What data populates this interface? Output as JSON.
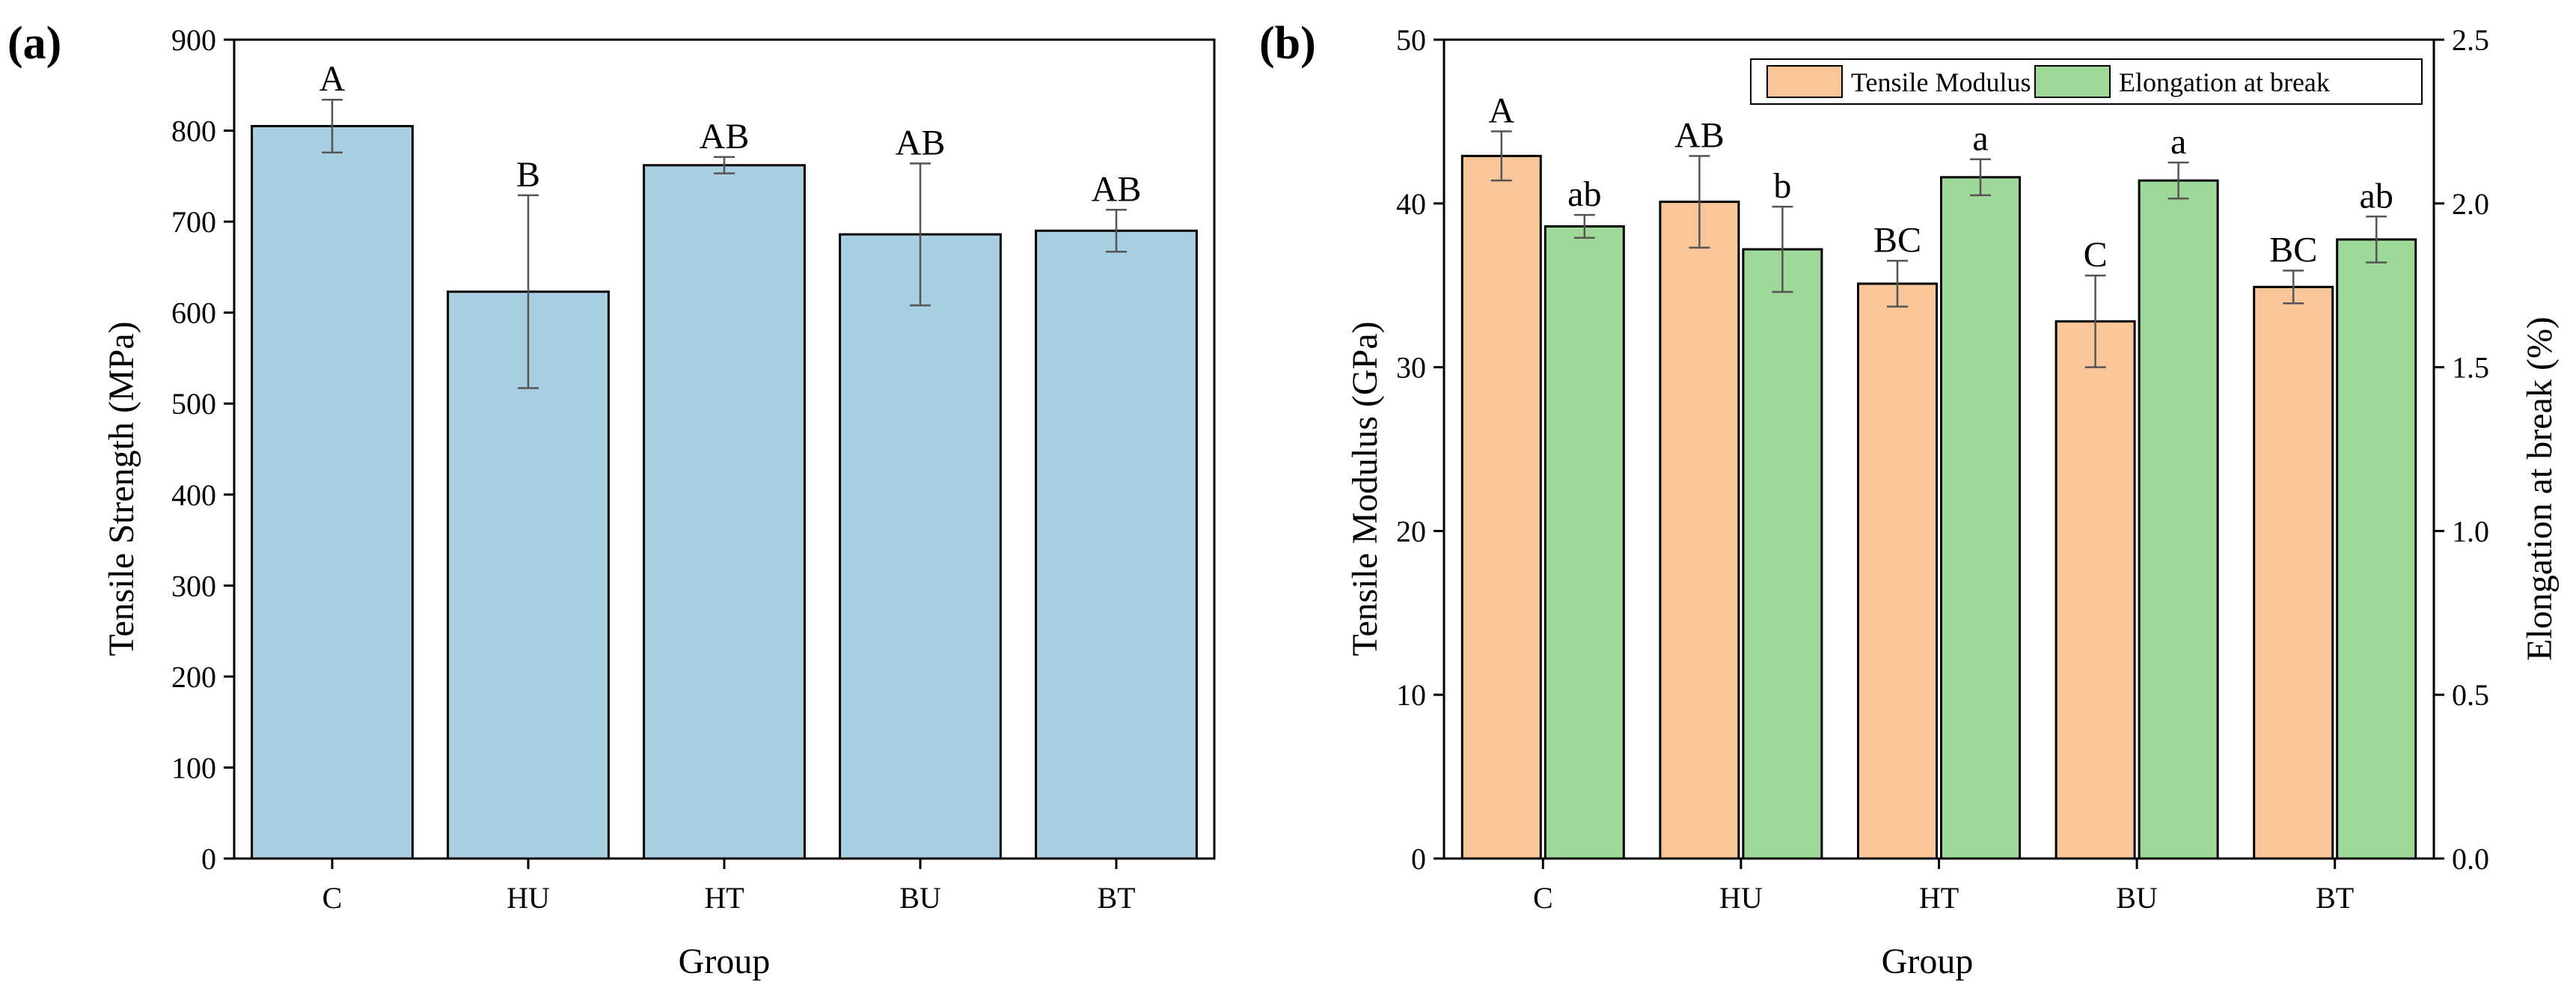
{
  "chart_data": [
    {
      "type": "bar",
      "panel_label": "(a)",
      "categories": [
        "C",
        "HU",
        "HT",
        "BU",
        "BT"
      ],
      "series": [
        {
          "name": "Tensile Strength",
          "color": "#a8cfe2",
          "values": [
            805,
            623,
            762,
            686,
            690
          ],
          "errors": [
            29,
            106,
            9,
            78,
            23
          ],
          "labels": [
            "A",
            "B",
            "AB",
            "AB",
            "AB"
          ]
        }
      ],
      "xlabel": "Group",
      "ylabel": "Tensile Strength (MPa)",
      "ylim": [
        0,
        900
      ],
      "yticks": [
        0,
        100,
        200,
        300,
        400,
        500,
        600,
        700,
        800,
        900
      ],
      "ytick_labels": [
        "0",
        "100",
        "200",
        "300",
        "400",
        "500",
        "600",
        "700",
        "800",
        "900"
      ],
      "legend": "none"
    },
    {
      "type": "bar",
      "panel_label": "(b)",
      "categories": [
        "C",
        "HU",
        "HT",
        "BU",
        "BT"
      ],
      "series": [
        {
          "name": "Tensile Modulus",
          "axis": "left",
          "color": "#f9c69a",
          "values": [
            42.9,
            40.1,
            35.1,
            32.8,
            34.9
          ],
          "errors": [
            1.5,
            2.8,
            1.4,
            2.8,
            1.0
          ],
          "labels": [
            "A",
            "AB",
            "BC",
            "C",
            "BC"
          ]
        },
        {
          "name": "Elongation at break",
          "axis": "right",
          "color": "#9fd99a",
          "values": [
            1.93,
            1.86,
            2.08,
            2.07,
            1.89
          ],
          "errors": [
            0.035,
            0.13,
            0.055,
            0.055,
            0.07
          ],
          "labels": [
            "ab",
            "b",
            "a",
            "a",
            "ab"
          ]
        }
      ],
      "xlabel": "Group",
      "ylabel": "Tensile Modulus (GPa)",
      "ylabel_right": "Elongation at break (%)",
      "ylim": [
        0,
        50
      ],
      "ylim_right": [
        0,
        2.5
      ],
      "yticks": [
        0,
        10,
        20,
        30,
        40,
        50
      ],
      "ytick_labels": [
        "0",
        "10",
        "20",
        "30",
        "40",
        "50"
      ],
      "yticks_right": [
        0,
        0.5,
        1.0,
        1.5,
        2.0,
        2.5
      ],
      "ytick_labels_right": [
        "0.0",
        "0.5",
        "1.0",
        "1.5",
        "2.0",
        "2.5"
      ],
      "legend": "top-right"
    }
  ]
}
